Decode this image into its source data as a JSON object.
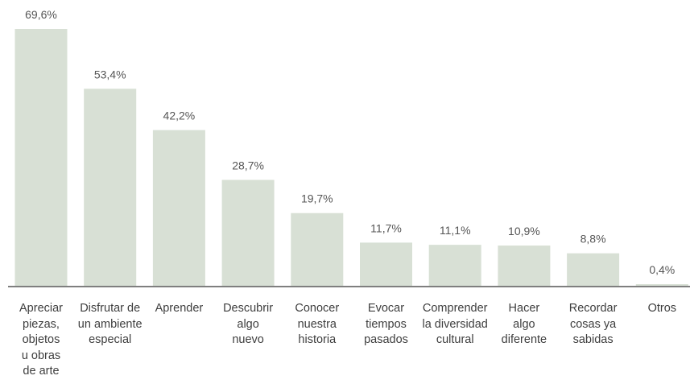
{
  "chart_data": {
    "type": "bar",
    "title": "",
    "xlabel": "",
    "ylabel": "",
    "ylim": [
      0,
      69.6
    ],
    "grid": false,
    "bar_color": "#d8e0d5",
    "axis_color": "#555555",
    "categories": [
      "Apreciar\npiezas,\nobjetos\nu obras\nde arte",
      "Disfrutar de\nun ambiente\nespecial",
      "Aprender",
      "Descubrir\nalgo\nnuevo",
      "Conocer\nnuestra\nhistoria",
      "Evocar\ntiempos\npasados",
      "Comprender\nla diversidad\ncultural",
      "Hacer\nalgo\ndiferente",
      "Recordar\ncosas ya\nsabidas",
      "Otros"
    ],
    "values": [
      69.6,
      53.4,
      42.2,
      28.7,
      19.7,
      11.7,
      11.1,
      10.9,
      8.8,
      0.4
    ],
    "value_labels": [
      "69,6%",
      "53,4%",
      "42,2%",
      "28,7%",
      "19,7%",
      "11,7%",
      "11,1%",
      "10,9%",
      "8,8%",
      "0,4%"
    ]
  }
}
